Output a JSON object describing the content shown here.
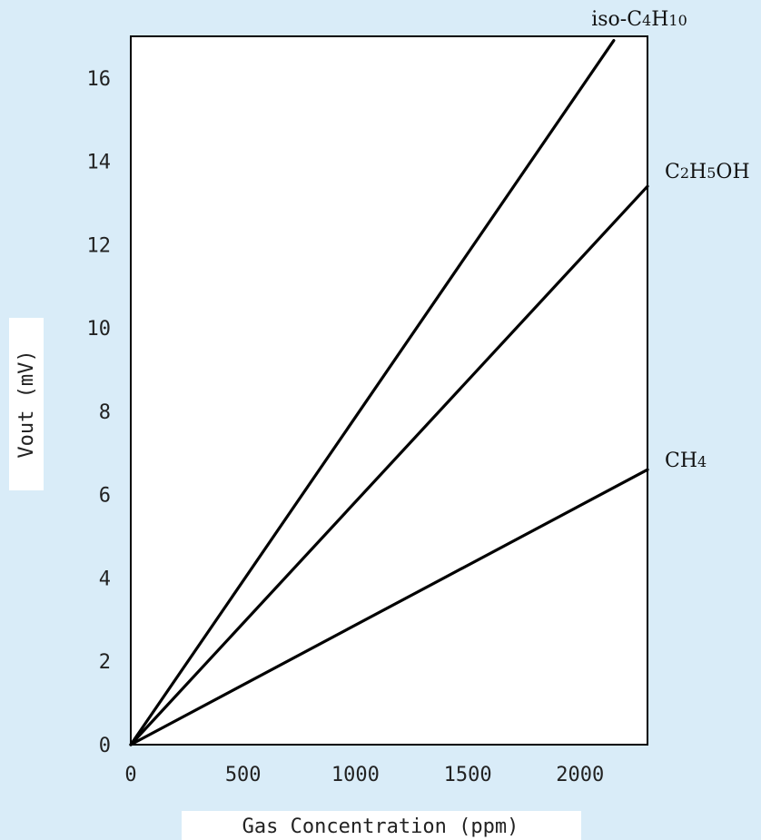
{
  "chart_data": {
    "type": "line",
    "title": "",
    "xlabel": "Gas Concentration (ppm)",
    "ylabel": "Vout (mV)",
    "xlim": [
      0,
      2300
    ],
    "ylim": [
      0,
      17
    ],
    "xticks": [
      0,
      500,
      1000,
      1500,
      2000
    ],
    "xtick_labels": [
      "0",
      "500",
      "1000",
      "1500",
      "2000"
    ],
    "yticks": [
      0,
      2,
      4,
      6,
      8,
      10,
      12,
      14,
      16
    ],
    "ytick_labels": [
      "0",
      "2",
      "4",
      "6",
      "8",
      "10",
      "12",
      "14",
      "16"
    ],
    "grid": false,
    "legend": "none",
    "series": [
      {
        "name": "iso-C4H10",
        "label_parts": [
          [
            "iso-C",
            false
          ],
          [
            "4",
            true
          ],
          [
            "H",
            false
          ],
          [
            "10",
            true
          ]
        ],
        "x": [
          0,
          2150
        ],
        "y": [
          0,
          16.9
        ],
        "color": "#000000"
      },
      {
        "name": "C2H5OH",
        "label_parts": [
          [
            "C",
            false
          ],
          [
            "2",
            true
          ],
          [
            "H",
            false
          ],
          [
            "5",
            true
          ],
          [
            "OH",
            false
          ]
        ],
        "x": [
          0,
          2300
        ],
        "y": [
          0,
          13.4
        ],
        "color": "#000000"
      },
      {
        "name": "CH4",
        "label_parts": [
          [
            "CH",
            false
          ],
          [
            "4",
            true
          ]
        ],
        "x": [
          0,
          2300
        ],
        "y": [
          0,
          6.6
        ],
        "color": "#000000"
      }
    ]
  }
}
